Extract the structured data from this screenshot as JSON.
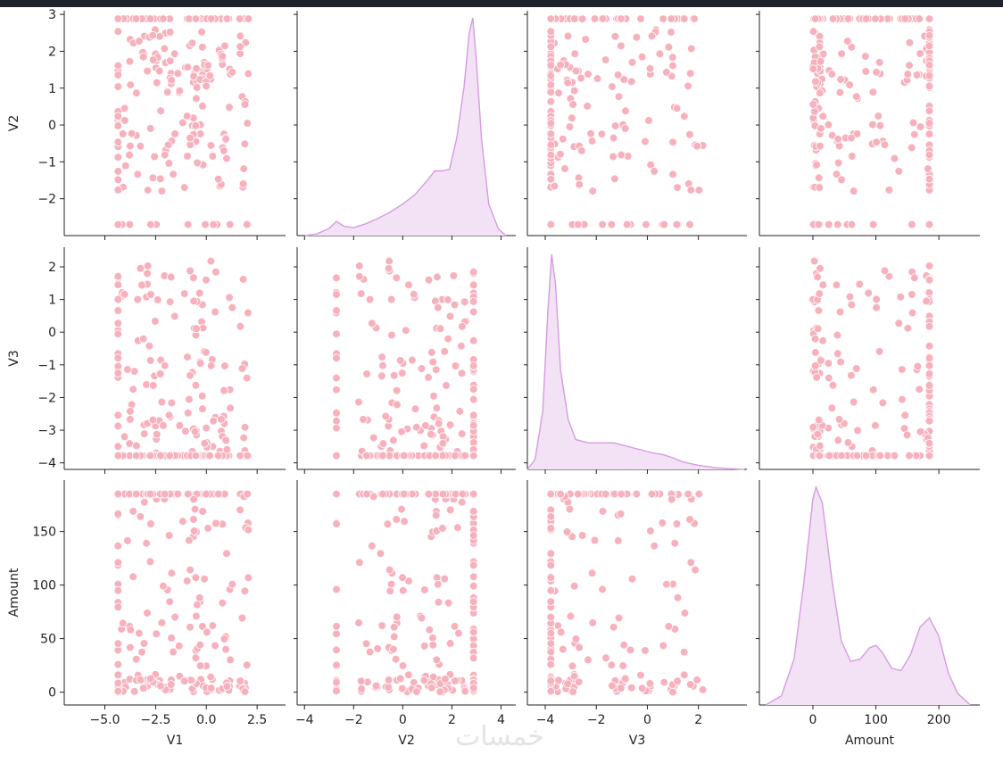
{
  "chart_data": {
    "type": "scatter",
    "kind": "pairplot",
    "variables": [
      "V2",
      "V3",
      "Amount"
    ],
    "x_variables": [
      "V1",
      "V2",
      "V3",
      "Amount"
    ],
    "x_ticks": {
      "V1": [
        "-5.0",
        "-2.5",
        "0.0",
        "2.5"
      ],
      "V2": [
        "-4",
        "-2",
        "0",
        "2",
        "4"
      ],
      "V3": [
        "-4",
        "-2",
        "0",
        "2"
      ],
      "Amount": [
        "0",
        "100",
        "200"
      ]
    },
    "y_ticks": {
      "V2": [
        "-2",
        "-1",
        "0",
        "1",
        "2",
        "3"
      ],
      "V3": [
        "-4",
        "-3",
        "-2",
        "-1",
        "0",
        "1",
        "2"
      ],
      "Amount": [
        "0",
        "50",
        "100",
        "150"
      ]
    },
    "x_ranges": {
      "V1": [
        -7,
        3.9
      ],
      "V2": [
        -4.3,
        4.6
      ],
      "V3": [
        -4.7,
        3.9
      ],
      "Amount": [
        -85,
        265
      ]
    },
    "y_ranges": {
      "V2": [
        -3.0,
        3.1
      ],
      "V3": [
        -4.2,
        2.6
      ],
      "Amount": [
        -12,
        198
      ]
    },
    "diagonal_kde": {
      "V2": {
        "x": [
          -4.0,
          -3.5,
          -3.0,
          -2.7,
          -2.4,
          -2.0,
          -1.5,
          -1.0,
          -0.5,
          0.0,
          0.5,
          1.0,
          1.3,
          1.6,
          1.9,
          2.2,
          2.5,
          2.7,
          2.85,
          3.0,
          3.2,
          3.5,
          3.9,
          4.2
        ],
        "y": [
          0.0,
          0.01,
          0.045,
          0.09,
          0.06,
          0.05,
          0.075,
          0.11,
          0.15,
          0.2,
          0.26,
          0.35,
          0.41,
          0.41,
          0.42,
          0.62,
          0.95,
          1.28,
          1.38,
          1.1,
          0.62,
          0.2,
          0.04,
          0.0
        ]
      },
      "V3": {
        "x": [
          -4.7,
          -4.4,
          -4.1,
          -3.9,
          -3.75,
          -3.6,
          -3.4,
          -3.1,
          -2.8,
          -2.3,
          -1.8,
          -1.3,
          -0.8,
          -0.3,
          0.2,
          0.6,
          1.0,
          1.4,
          2.0,
          2.6,
          3.2,
          3.8
        ],
        "y": [
          0.0,
          0.06,
          0.35,
          0.95,
          1.3,
          1.12,
          0.6,
          0.3,
          0.18,
          0.16,
          0.16,
          0.16,
          0.14,
          0.12,
          0.1,
          0.09,
          0.07,
          0.045,
          0.025,
          0.012,
          0.005,
          0.0
        ]
      },
      "Amount": {
        "x": [
          -75,
          -50,
          -30,
          -15,
          0,
          5,
          15,
          30,
          45,
          60,
          75,
          90,
          100,
          110,
          125,
          140,
          155,
          170,
          185,
          200,
          215,
          230,
          250
        ],
        "y": [
          0.0,
          0.04,
          0.2,
          0.52,
          0.9,
          0.95,
          0.88,
          0.55,
          0.28,
          0.19,
          0.2,
          0.25,
          0.26,
          0.23,
          0.16,
          0.15,
          0.22,
          0.34,
          0.38,
          0.3,
          0.14,
          0.05,
          0.0
        ]
      }
    },
    "grid": false,
    "legend": "none",
    "colors": {
      "points": "#f7b1bd",
      "points_edge": "#ffffff",
      "kde_line": "#d69be0",
      "kde_fill": "#f3e2f5",
      "axis": "#222222"
    }
  }
}
